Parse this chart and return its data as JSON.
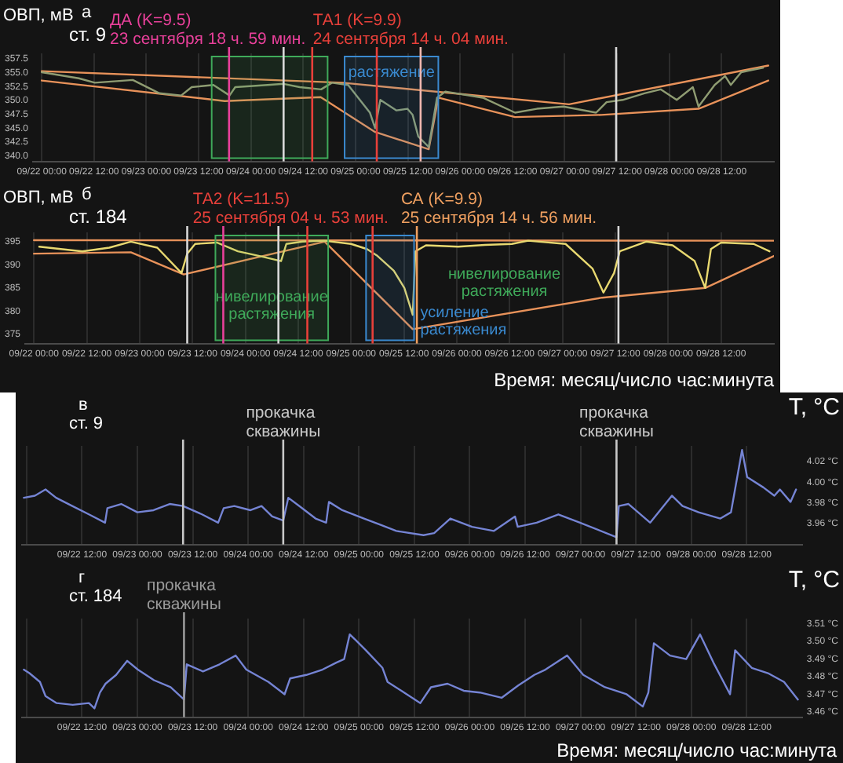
{
  "chart_data": [
    {
      "type": "line",
      "title": "а",
      "subtitle": "ст. 9",
      "ylabel": "ОВП, мВ",
      "xlim": [
        "--09-21T22:00",
        "--09-29T00:00"
      ],
      "ylim": [
        339,
        358.5
      ],
      "xticks": [
        {
          "value": "--09-22T00:00",
          "label": "09/22 00:00"
        },
        {
          "value": "--09-22T12:00",
          "label": "09/22 12:00"
        },
        {
          "value": "--09-23T00:00",
          "label": "09/23 00:00"
        },
        {
          "value": "--09-23T12:00",
          "label": "09/23 12:00"
        },
        {
          "value": "--09-24T00:00",
          "label": "09/24 00:00"
        },
        {
          "value": "--09-24T12:00",
          "label": "09/24 12:00"
        },
        {
          "value": "--09-25T00:00",
          "label": "09/25 00:00"
        },
        {
          "value": "--09-25T12:00",
          "label": "09/25 12:00"
        },
        {
          "value": "--09-26T00:00",
          "label": "09/26 00:00"
        },
        {
          "value": "--09-26T12:00",
          "label": "09/26 12:00"
        },
        {
          "value": "--09-27T00:00",
          "label": "09/27 00:00"
        },
        {
          "value": "--09-27T12:00",
          "label": "09/27 12:00"
        },
        {
          "value": "--09-28T00:00",
          "label": "09/28 00:00"
        },
        {
          "value": "--09-28T12:00",
          "label": "09/28 12:00"
        }
      ],
      "yticks": [
        {
          "value": 340,
          "label": "340.0"
        },
        {
          "value": 342.5,
          "label": "342.5"
        },
        {
          "value": 345,
          "label": "345.0"
        },
        {
          "value": 347.5,
          "label": "347.5"
        },
        {
          "value": 350,
          "label": "350.0"
        },
        {
          "value": 352.5,
          "label": "352.5"
        },
        {
          "value": 355,
          "label": "355.0"
        },
        {
          "value": 357.5,
          "label": "357.5"
        }
      ],
      "grid": "x",
      "legend": false,
      "line_style": "solid",
      "marker": "none",
      "series": [
        {
          "type": "line",
          "color": "#8f9c72",
          "x": [
            "--09-22T00:00",
            "--09-22T08:30",
            "--09-22T12:12",
            "--09-22T20:54",
            "--09-23T03:00",
            "--09-23T08:00",
            "--09-23T10:24",
            "--09-23T15:24",
            "--09-23T19:06",
            "--09-23T20:24",
            "--09-24T03:48",
            "--09-24T07:30",
            "--09-24T11:12",
            "--09-24T16:06",
            "--09-24T18:36",
            "--09-24T22:18",
            "--09-25T03:18",
            "--09-25T04:30",
            "--09-25T05:42",
            "--09-25T09:24",
            "--09-25T11:54",
            "--09-25T13:06",
            "--09-25T14:24",
            "--09-25T16:48",
            "--09-25T18:42",
            "--09-25T20:36",
            "--09-26T05:12",
            "--09-26T12:36",
            "--09-26T17:36",
            "--09-26T23:42",
            "--09-27T07:12",
            "--09-27T09:36",
            "--09-27T13:18",
            "--09-27T18:18",
            "--09-27T22:00",
            "--09-28T01:42",
            "--09-28T05:24",
            "--09-28T06:42",
            "--09-28T10:24",
            "--09-28T12:48",
            "--09-28T14:06",
            "--09-28T16:30",
            "--09-28T19:00",
            "--09-28T21:30"
          ],
          "values": [
            355.1,
            354,
            353.2,
            353.7,
            351.3,
            350.9,
            352.4,
            352.8,
            350.9,
            352.4,
            352.8,
            353,
            352.4,
            352,
            353.2,
            352.8,
            347.8,
            345,
            350.1,
            348.2,
            348.5,
            347.4,
            343.5,
            341.6,
            350.5,
            351.6,
            350.5,
            347.8,
            348.5,
            348.9,
            347.8,
            349.7,
            350.1,
            351.3,
            352,
            350.1,
            352.4,
            348.9,
            352.8,
            354.4,
            352.8,
            355.1,
            355.5,
            355.9
          ]
        },
        {
          "type": "line",
          "color": "#e8925a",
          "x": [
            "--09-22T00:00",
            "--09-24T21:00",
            "--09-27T01:00",
            "--09-28T22:42"
          ],
          "values": [
            355.3,
            353.2,
            349.3,
            356.3
          ]
        },
        {
          "type": "line",
          "color": "#e8925a",
          "x": [
            "--09-22T00:00",
            "--09-23T18:00",
            "--09-24T16:00",
            "--09-25T04:30",
            "--09-25T16:48",
            "--09-25T19:00",
            "--09-26T12:36",
            "--09-27T08:24",
            "--09-28T06:42",
            "--09-28T22:42"
          ],
          "values": [
            353.6,
            349.9,
            350.6,
            344.3,
            341.2,
            350.5,
            347,
            347.4,
            348.5,
            353.6
          ]
        }
      ],
      "ref_lines": [
        {
          "axis": "x",
          "value": "--09-23T18:59",
          "color": "#e8409a",
          "label": "ДА (K=9.5)\n23 сентября 18 ч. 59 мин."
        },
        {
          "axis": "x",
          "value": "--09-24T14:04",
          "color": "#e8403a",
          "label": "ТА1 (K=9.9)\n24 сентября 14 ч. 04 мин."
        },
        {
          "axis": "x",
          "value": "--09-24T07:30",
          "color": "#d8d8d8"
        },
        {
          "axis": "x",
          "value": "--09-25T04:53",
          "color": "#e8403a"
        },
        {
          "axis": "x",
          "value": "--09-25T14:56",
          "color": "#f0b8b0"
        },
        {
          "axis": "x",
          "value": "--09-27T11:48",
          "color": "#d8d8d8"
        }
      ],
      "bands": [
        {
          "axis": "x",
          "from": "--09-23T15:00",
          "to": "--09-24T17:36",
          "color": "#3faa5a"
        },
        {
          "axis": "x",
          "from": "--09-24T21:30",
          "to": "--09-25T19:00",
          "color": "#3a8ad0",
          "label": "растяжение"
        }
      ]
    },
    {
      "type": "line",
      "title": "б",
      "subtitle": "ст. 184",
      "ylabel": "ОВП, мВ",
      "xlabel": "Время: месяц/число час:минута",
      "xlim": [
        "--09-21T22:00",
        "--09-29T00:00"
      ],
      "ylim": [
        373,
        397
      ],
      "xticks": [
        {
          "value": "--09-22T00:00",
          "label": "09/22 00:00"
        },
        {
          "value": "--09-22T12:00",
          "label": "09/22 12:00"
        },
        {
          "value": "--09-23T00:00",
          "label": "09/23 00:00"
        },
        {
          "value": "--09-23T12:00",
          "label": "09/23 12:00"
        },
        {
          "value": "--09-24T00:00",
          "label": "09/24 00:00"
        },
        {
          "value": "--09-24T12:00",
          "label": "09/24 12:00"
        },
        {
          "value": "--09-25T00:00",
          "label": "09/25 00:00"
        },
        {
          "value": "--09-25T12:00",
          "label": "09/25 12:00"
        },
        {
          "value": "--09-26T00:00",
          "label": "09/26 00:00"
        },
        {
          "value": "--09-26T12:00",
          "label": "09/26 12:00"
        },
        {
          "value": "--09-27T00:00",
          "label": "09/27 00:00"
        },
        {
          "value": "--09-27T12:00",
          "label": "09/27 12:00"
        },
        {
          "value": "--09-28T00:00",
          "label": "09/28 00:00"
        },
        {
          "value": "--09-28T12:00",
          "label": "09/28 12:00"
        }
      ],
      "yticks": [
        375,
        380,
        385,
        390,
        395
      ],
      "grid": "x",
      "legend": false,
      "line_style": "solid",
      "marker": "none",
      "series": [
        {
          "type": "line",
          "color": "#e8d870",
          "x": [
            "--09-22T01:12",
            "--09-22T11:00",
            "--09-22T17:06",
            "--09-22T22:00",
            "--09-23T04:00",
            "--09-23T09:30",
            "--09-23T10:48",
            "--09-23T12:36",
            "--09-23T17:30",
            "--09-23T22:18",
            "--09-24T03:12",
            "--09-24T08:06",
            "--09-24T09:18",
            "--09-24T13:00",
            "--09-24T17:54",
            "--09-25T00:00",
            "--09-25T03:36",
            "--09-25T06:00",
            "--09-25T09:42",
            "--09-25T12:06",
            "--09-25T14:00",
            "--09-25T14:36",
            "--09-25T17:00",
            "--09-26T00:18",
            "--09-26T06:24",
            "--09-26T12:30",
            "--09-26T16:12",
            "--09-27T00:42",
            "--09-27T06:48",
            "--09-27T09:18",
            "--09-27T11:42",
            "--09-27T13:00",
            "--09-27T19:00",
            "--09-28T01:00",
            "--09-28T06:00",
            "--09-28T08:24",
            "--09-28T09:42",
            "--09-28T12:00",
            "--09-28T19:24",
            "--09-28T23:00"
          ],
          "values": [
            393.9,
            392.9,
            393.7,
            395,
            393.7,
            388.2,
            392.4,
            394.5,
            394.8,
            392.9,
            391.9,
            390.8,
            394.5,
            395,
            395.2,
            394.5,
            393.4,
            391.9,
            388.7,
            385,
            379.2,
            392.9,
            394.2,
            393.9,
            394.3,
            394.5,
            395.2,
            394.5,
            389.2,
            384,
            388.2,
            392.9,
            395,
            394.2,
            390.8,
            385,
            393.4,
            394.8,
            394.5,
            392.9
          ]
        },
        {
          "type": "line",
          "color": "#e8925a",
          "x": [
            "--09-22T00:00",
            "--09-29T00:00"
          ],
          "values": [
            395.3,
            395.2
          ]
        },
        {
          "type": "line",
          "color": "#e8925a",
          "x": [
            "--09-22T00:00",
            "--09-22T22:00",
            "--09-23T10:00",
            "--09-24T18:00",
            "--09-25T14:00",
            "--09-27T09:00",
            "--09-28T08:24",
            "--09-29T00:00"
          ],
          "values": [
            392.4,
            392.7,
            387.9,
            395,
            376.1,
            382.9,
            385,
            391.9
          ]
        }
      ],
      "ref_lines": [
        {
          "axis": "x",
          "value": "--09-25T04:53",
          "color": "#e8403a",
          "label": "ТА2 (K=11.5)\n25 сентября 04 ч. 53 мин."
        },
        {
          "axis": "x",
          "value": "--09-25T14:56",
          "color": "#f0a060",
          "label": "СА (K=9.9)\n25 сентября 14 ч. 56 мин."
        },
        {
          "axis": "x",
          "value": "--09-23T10:48",
          "color": "#d8d8d8"
        },
        {
          "axis": "x",
          "value": "--09-23T18:59",
          "color": "#e8409a"
        },
        {
          "axis": "x",
          "value": "--09-24T07:30",
          "color": "#d8d8d8"
        },
        {
          "axis": "x",
          "value": "--09-24T14:04",
          "color": "#e8403a"
        },
        {
          "axis": "x",
          "value": "--09-27T12:42",
          "color": "#d8d8d8"
        }
      ],
      "bands": [
        {
          "axis": "x",
          "from": "--09-23T17:12",
          "to": "--09-24T18:48",
          "color": "#3faa5a",
          "label": "нивелирование\nрастяжения"
        },
        {
          "axis": "x",
          "from": "--09-25T03:24",
          "to": "--09-25T14:18",
          "color": "#3a8ad0",
          "label": "усиление\nрастяжения"
        }
      ],
      "annotations": [
        "нивелирование\nрастяжения"
      ]
    },
    {
      "type": "line",
      "title": "в",
      "subtitle": "ст. 9",
      "y2label": "T, °C",
      "xlim": [
        "--09-21T23:00",
        "--09-29T00:00"
      ],
      "y2lim": [
        3.94,
        4.035
      ],
      "xticks": [
        {
          "value": "--09-22T00:00",
          "label": null
        },
        {
          "value": "--09-22T12:00",
          "label": "09/22 12:00"
        },
        {
          "value": "--09-23T00:00",
          "label": "09/23 00:00"
        },
        {
          "value": "--09-23T12:00",
          "label": "09/23 12:00"
        },
        {
          "value": "--09-24T00:00",
          "label": "09/24 00:00"
        },
        {
          "value": "--09-24T12:00",
          "label": "09/24 12:00"
        },
        {
          "value": "--09-25T00:00",
          "label": "09/25 00:00"
        },
        {
          "value": "--09-25T12:00",
          "label": "09/25 12:00"
        },
        {
          "value": "--09-26T00:00",
          "label": "09/26 00:00"
        },
        {
          "value": "--09-26T12:00",
          "label": "09/26 12:00"
        },
        {
          "value": "--09-27T00:00",
          "label": "09/27 00:00"
        },
        {
          "value": "--09-27T12:00",
          "label": "09/27 12:00"
        },
        {
          "value": "--09-28T00:00",
          "label": "09/28 00:00"
        },
        {
          "value": "--09-28T12:00",
          "label": "09/28 12:00"
        }
      ],
      "y2ticks": [
        {
          "value": 3.96,
          "label": "3.96 °C"
        },
        {
          "value": 3.98,
          "label": "3.98 °C"
        },
        {
          "value": 4.0,
          "label": "4.00 °C"
        },
        {
          "value": 4.02,
          "label": "4.02 °C"
        }
      ],
      "grid": "x",
      "legend": false,
      "line_style": "solid",
      "marker": "none",
      "series": [
        {
          "type": "line",
          "axis": "y2",
          "color": "#7584d4",
          "x": [
            "--09-21T23:24",
            "--09-22T01:48",
            "--09-22T04:06",
            "--09-22T06:24",
            "--09-22T09:54",
            "--09-22T13:30",
            "--09-22T17:00",
            "--09-22T17:30",
            "--09-22T20:30",
            "--09-23T00:00",
            "--09-23T03:30",
            "--09-23T07:00",
            "--09-23T09:54",
            "--09-23T14:00",
            "--09-23T17:30",
            "--09-23T18:42",
            "--09-23T21:00",
            "--09-24T00:30",
            "--09-24T02:54",
            "--09-24T05:12",
            "--09-24T07:36",
            "--09-24T08:42",
            "--09-24T11:06",
            "--09-24T14:36",
            "--09-24T16:54",
            "--09-24T17:30",
            "--09-24T20:24",
            "--09-25T01:06",
            "--09-25T04:36",
            "--09-25T08:06",
            "--09-25T14:00",
            "--09-25T16:18",
            "--09-25T19:48",
            "--09-26T00:30",
            "--09-26T05:12",
            "--09-26T09:48",
            "--09-26T10:24",
            "--09-26T14:30",
            "--09-26T19:12",
            "--09-26T23:54",
            "--09-27T07:48",
            "--09-27T08:18",
            "--09-27T10:24",
            "--09-27T15:06",
            "--09-27T19:48",
            "--09-27T22:06",
            "--09-28T01:36",
            "--09-28T06:18",
            "--09-28T08:36",
            "--09-28T11:00",
            "--09-28T12:06",
            "--09-28T15:36",
            "--09-28T18:00",
            "--09-28T19:12",
            "--09-28T21:30",
            "--09-28T22:42"
          ],
          "values": [
            3.985,
            3.987,
            3.993,
            3.985,
            3.977,
            3.969,
            3.961,
            3.975,
            3.979,
            3.971,
            3.973,
            3.979,
            3.977,
            3.969,
            3.961,
            3.975,
            3.977,
            3.973,
            3.977,
            3.967,
            3.963,
            3.985,
            3.977,
            3.965,
            3.961,
            3.981,
            3.973,
            3.965,
            3.959,
            3.953,
            3.949,
            3.951,
            3.965,
            3.957,
            3.953,
            3.967,
            3.957,
            3.961,
            3.969,
            3.961,
            3.947,
            3.977,
            3.979,
            3.961,
            3.987,
            3.977,
            3.971,
            3.965,
            3.971,
            4.031,
            4.005,
            3.995,
            3.987,
            3.993,
            3.981,
            3.993
          ]
        }
      ],
      "ref_lines": [
        {
          "axis": "x",
          "value": "--09-24T07:36",
          "color": "#c8c8c8",
          "label": "прокачка\nскважины"
        },
        {
          "axis": "x",
          "value": "--09-27T07:48",
          "color": "#c8c8c8",
          "label": "прокачка\nскважины"
        },
        {
          "axis": "x",
          "value": "--09-23T09:54",
          "color": "#c8c8c8"
        }
      ]
    },
    {
      "type": "line",
      "title": "г",
      "subtitle": "ст. 184",
      "y2label": "T, °C",
      "xlabel": "Время: месяц/число час:минута",
      "xlim": [
        "--09-21T23:00",
        "--09-29T00:00"
      ],
      "y2lim": [
        3.457,
        3.513
      ],
      "xticks": [
        {
          "value": "--09-22T00:00",
          "label": null
        },
        {
          "value": "--09-22T12:00",
          "label": "09/22 12:00"
        },
        {
          "value": "--09-23T00:00",
          "label": "09/23 00:00"
        },
        {
          "value": "--09-23T12:00",
          "label": "09/23 12:00"
        },
        {
          "value": "--09-24T00:00",
          "label": "09/24 00:00"
        },
        {
          "value": "--09-24T12:00",
          "label": "09/24 12:00"
        },
        {
          "value": "--09-25T00:00",
          "label": "09/25 00:00"
        },
        {
          "value": "--09-25T12:00",
          "label": "09/25 12:00"
        },
        {
          "value": "--09-26T00:00",
          "label": "09/26 00:00"
        },
        {
          "value": "--09-26T12:00",
          "label": "09/26 12:00"
        },
        {
          "value": "--09-27T00:00",
          "label": "09/27 00:00"
        },
        {
          "value": "--09-27T12:00",
          "label": "09/27 12:00"
        },
        {
          "value": "--09-28T00:00",
          "label": "09/28 00:00"
        },
        {
          "value": "--09-28T12:00",
          "label": "09/28 12:00"
        }
      ],
      "y2ticks": [
        {
          "value": 3.46,
          "label": "3.46 °C"
        },
        {
          "value": 3.47,
          "label": "3.47 °C"
        },
        {
          "value": 3.48,
          "label": "3.48 °C"
        },
        {
          "value": 3.49,
          "label": "3.49 °C"
        },
        {
          "value": 3.5,
          "label": "3.50 °C"
        },
        {
          "value": 3.51,
          "label": "3.51 °C"
        }
      ],
      "grid": "x",
      "legend": false,
      "line_style": "solid",
      "marker": "none",
      "series": [
        {
          "type": "line",
          "axis": "y2",
          "color": "#7584d4",
          "x": [
            "--09-21T23:24",
            "--09-22T00:36",
            "--09-22T02:54",
            "--09-22T04:06",
            "--09-22T06:30",
            "--09-22T10:00",
            "--09-22T13:30",
            "--09-22T14:42",
            "--09-22T15:54",
            "--09-22T17:06",
            "--09-22T19:24",
            "--09-22T21:48",
            "--09-23T00:06",
            "--09-23T03:36",
            "--09-23T07:12",
            "--09-23T10:06",
            "--09-23T10:42",
            "--09-23T14:12",
            "--09-23T17:48",
            "--09-23T21:18",
            "--09-23T23:36",
            "--09-24T04:24",
            "--09-24T07:54",
            "--09-24T09:06",
            "--09-24T12:36",
            "--09-24T16:06",
            "--09-24T19:06",
            "--09-24T20:48",
            "--09-24T22:00",
            "--09-24T23:12",
            "--09-25T01:30",
            "--09-25T05:06",
            "--09-25T06:12",
            "--09-25T09:12",
            "--09-25T13:18",
            "--09-25T15:36",
            "--09-25T19:12",
            "--09-25T22:42",
            "--09-26T02:12",
            "--09-26T06:54",
            "--09-26T10:30",
            "--09-26T14:00",
            "--09-26T16:24",
            "--09-26T21:06",
            "--09-27T00:36",
            "--09-27T05:18",
            "--09-27T10:00",
            "--09-27T13:30",
            "--09-27T14:42",
            "--09-27T15:54",
            "--09-27T19:24",
            "--09-27T22:54",
            "--09-28T01:54",
            "--09-28T04:48",
            "--09-28T08:24",
            "--09-28T09:30",
            "--09-28T13:06",
            "--09-28T16:36",
            "--09-28T20:06",
            "--09-28T23:06"
          ],
          "values": [
            3.484,
            3.482,
            3.477,
            3.469,
            3.465,
            3.464,
            3.465,
            3.462,
            3.471,
            3.476,
            3.481,
            3.489,
            3.484,
            3.478,
            3.474,
            3.467,
            3.487,
            3.483,
            3.487,
            3.492,
            3.484,
            3.477,
            3.47,
            3.479,
            3.481,
            3.484,
            3.488,
            3.49,
            3.504,
            3.501,
            3.495,
            3.485,
            3.477,
            3.472,
            3.465,
            3.474,
            3.476,
            3.472,
            3.471,
            3.468,
            3.475,
            3.481,
            3.484,
            3.492,
            3.481,
            3.474,
            3.47,
            3.463,
            3.471,
            3.499,
            3.492,
            3.49,
            3.504,
            3.488,
            3.47,
            3.495,
            3.485,
            3.482,
            3.477,
            3.467
          ]
        }
      ],
      "ref_lines": [
        {
          "axis": "x",
          "value": "--09-23T10:06",
          "color": "#9a9a9a",
          "label": "прокачка\nскважины"
        }
      ]
    }
  ]
}
